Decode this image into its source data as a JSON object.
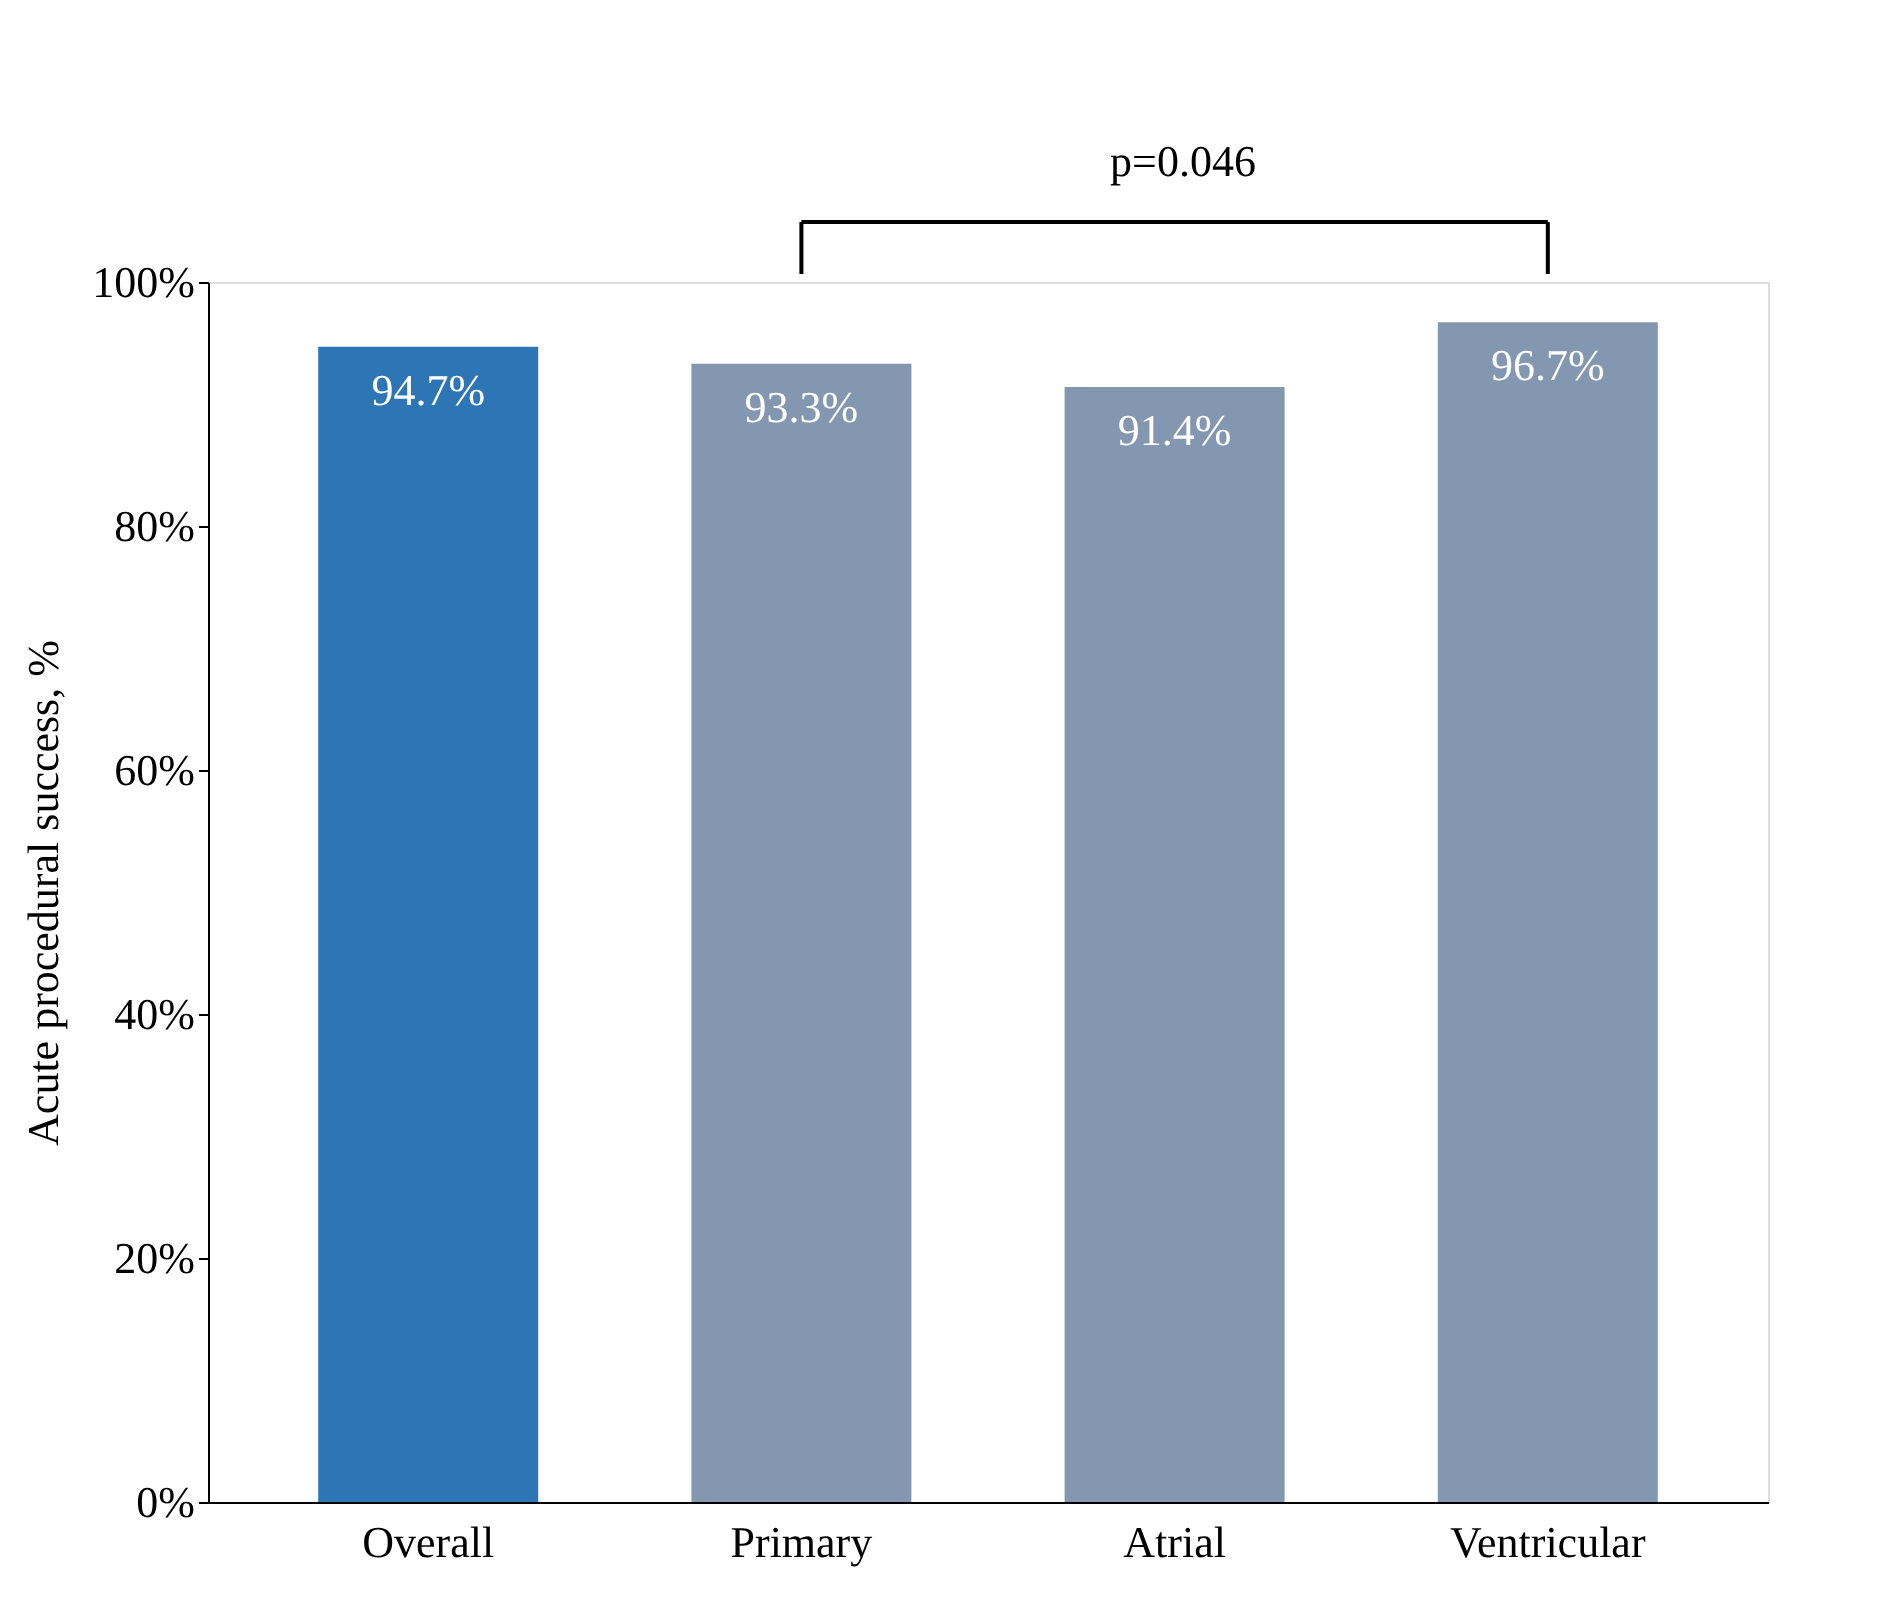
{
  "chart_data": {
    "type": "bar",
    "ylabel": "Acute procedural success, %",
    "categories": [
      "Overall",
      "Primary",
      "Atrial",
      "Ventricular"
    ],
    "values": [
      94.7,
      93.3,
      91.4,
      96.7
    ],
    "colors": [
      "#2e75b6",
      "#8497b0",
      "#8497b0",
      "#8497b0"
    ],
    "value_labels": [
      "94.7%",
      "93.3%",
      "91.4%",
      "96.7%"
    ],
    "ylim": [
      0,
      100
    ],
    "yticks": [
      {
        "value": 0,
        "label": "0%"
      },
      {
        "value": 20,
        "label": "20%"
      },
      {
        "value": 40,
        "label": "40%"
      },
      {
        "value": 60,
        "label": "60%"
      },
      {
        "value": 80,
        "label": "80%"
      },
      {
        "value": 100,
        "label": "100%"
      }
    ],
    "grid": false,
    "annotations": [
      "p=0.046"
    ]
  }
}
